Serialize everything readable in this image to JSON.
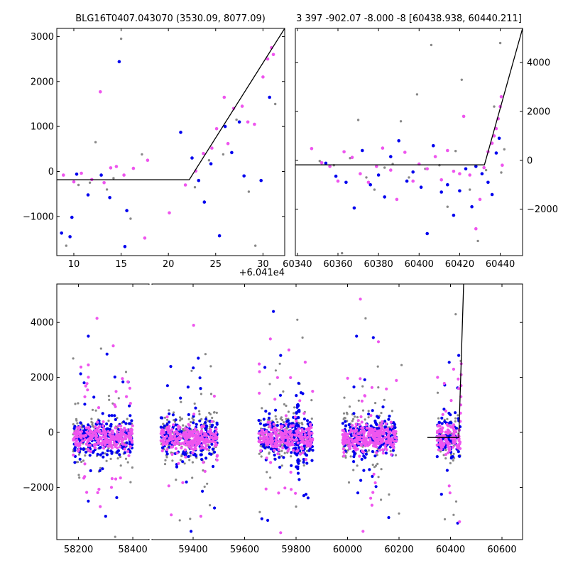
{
  "chart_data": [
    {
      "type": "scatter",
      "panel": "top-left",
      "title": "BLG16T0407.043070 (3530.09, 8077.09)",
      "xlim": [
        8.2,
        32.3
      ],
      "ylim": [
        -1870,
        3180
      ],
      "xticks": [
        10,
        15,
        20,
        25,
        30
      ],
      "yticks": [
        -1000,
        0,
        1000,
        2000,
        3000
      ],
      "ytick_side": "left",
      "x_offset_label": "+6.041e4",
      "model_line": {
        "x": [
          8.2,
          22.2,
          32.3
        ],
        "y": [
          -185,
          -185,
          3180
        ]
      },
      "series": [
        {
          "color": "#888888",
          "points": [
            [
              9.2,
              -1650
            ],
            [
              10.5,
              -300
            ],
            [
              11.7,
              -250
            ],
            [
              12.3,
              650
            ],
            [
              13.5,
              -400
            ],
            [
              14.2,
              -150
            ],
            [
              15.0,
              2950
            ],
            [
              16.0,
              -1050
            ],
            [
              17.2,
              380
            ],
            [
              22.8,
              -350
            ],
            [
              24.3,
              250
            ],
            [
              25.8,
              380
            ],
            [
              27.2,
              1150
            ],
            [
              28.5,
              -450
            ],
            [
              29.2,
              -1650
            ],
            [
              31.3,
              1500
            ]
          ]
        },
        {
          "color": "#0000ee",
          "points": [
            [
              8.7,
              -1370
            ],
            [
              9.6,
              -1450
            ],
            [
              9.8,
              -1020
            ],
            [
              10.3,
              -60
            ],
            [
              11.5,
              -520
            ],
            [
              12.9,
              -80
            ],
            [
              13.8,
              -580
            ],
            [
              14.8,
              2440
            ],
            [
              15.4,
              -1670
            ],
            [
              15.6,
              -870
            ],
            [
              21.3,
              870
            ],
            [
              22.5,
              300
            ],
            [
              23.2,
              -200
            ],
            [
              23.8,
              -680
            ],
            [
              24.5,
              170
            ],
            [
              25.4,
              -1430
            ],
            [
              26.0,
              1000
            ],
            [
              26.7,
              420
            ],
            [
              27.5,
              1100
            ],
            [
              28.0,
              -100
            ],
            [
              29.8,
              -200
            ],
            [
              30.7,
              1650
            ]
          ]
        },
        {
          "color": "#ee55ee",
          "points": [
            [
              8.9,
              -80
            ],
            [
              10.0,
              -230
            ],
            [
              10.8,
              -40
            ],
            [
              11.9,
              -180
            ],
            [
              12.8,
              1770
            ],
            [
              13.2,
              -250
            ],
            [
              13.9,
              80
            ],
            [
              14.5,
              110
            ],
            [
              15.3,
              -80
            ],
            [
              16.3,
              70
            ],
            [
              17.5,
              -1480
            ],
            [
              17.8,
              250
            ],
            [
              20.1,
              -920
            ],
            [
              21.8,
              -300
            ],
            [
              22.9,
              10
            ],
            [
              23.7,
              400
            ],
            [
              24.6,
              520
            ],
            [
              25.1,
              950
            ],
            [
              25.9,
              1650
            ],
            [
              26.3,
              620
            ],
            [
              26.9,
              1400
            ],
            [
              27.8,
              1450
            ],
            [
              28.4,
              1100
            ],
            [
              29.1,
              1050
            ],
            [
              30.0,
              2100
            ],
            [
              30.5,
              2500
            ],
            [
              30.9,
              2750
            ],
            [
              31.1,
              2600
            ]
          ]
        }
      ]
    },
    {
      "type": "scatter",
      "panel": "top-right",
      "title": "3 397 -902.07 -8.000 -8 [60438.938, 60440.211]",
      "xlim": [
        60339,
        60451
      ],
      "ylim": [
        -3900,
        5400
      ],
      "xticks": [
        60340,
        60360,
        60380,
        60400,
        60420,
        60440
      ],
      "yticks": [
        -2000,
        0,
        2000,
        4000
      ],
      "ytick_side": "right",
      "model_line": {
        "x": [
          60339,
          60432.2,
          60451
        ],
        "y": [
          -185,
          -185,
          5400
        ]
      },
      "series": [
        {
          "color": "#888888",
          "points": [
            [
              60351,
              -30
            ],
            [
              60358,
              -200
            ],
            [
              60362,
              -3800
            ],
            [
              60366,
              90
            ],
            [
              60370,
              1650
            ],
            [
              60374,
              -700
            ],
            [
              60378,
              -1200
            ],
            [
              60383,
              -300
            ],
            [
              60387,
              -150
            ],
            [
              60391,
              1600
            ],
            [
              60395,
              -700
            ],
            [
              60399,
              2700
            ],
            [
              60403,
              -350
            ],
            [
              60406,
              4720
            ],
            [
              60410,
              -200
            ],
            [
              60414,
              -1900
            ],
            [
              60418,
              380
            ],
            [
              60421,
              3300
            ],
            [
              60425,
              -1200
            ],
            [
              60429,
              -3300
            ],
            [
              60433,
              -400
            ],
            [
              60437,
              2200
            ],
            [
              60440,
              4800
            ],
            [
              60440.5,
              -500
            ],
            [
              60442,
              450
            ]
          ]
        },
        {
          "color": "#0000ee",
          "points": [
            [
              60354,
              -120
            ],
            [
              60359,
              -650
            ],
            [
              60364,
              -900
            ],
            [
              60368,
              -1950
            ],
            [
              60372,
              400
            ],
            [
              60376,
              -1000
            ],
            [
              60380,
              -600
            ],
            [
              60383,
              -1500
            ],
            [
              60386,
              150
            ],
            [
              60390,
              800
            ],
            [
              60394,
              -850
            ],
            [
              60397,
              -480
            ],
            [
              60401,
              -1100
            ],
            [
              60404,
              -3000
            ],
            [
              60407,
              600
            ],
            [
              60411,
              -1300
            ],
            [
              60414,
              -1000
            ],
            [
              60417,
              -2250
            ],
            [
              60420,
              -1250
            ],
            [
              60423,
              -350
            ],
            [
              60426,
              -1900
            ],
            [
              60428,
              -250
            ],
            [
              60431,
              -550
            ],
            [
              60434,
              -900
            ],
            [
              60436,
              -1400
            ],
            [
              60438,
              300
            ],
            [
              60439.5,
              900
            ]
          ]
        },
        {
          "color": "#ee55ee",
          "points": [
            [
              60347,
              480
            ],
            [
              60352,
              -100
            ],
            [
              60356,
              -250
            ],
            [
              60360,
              -850
            ],
            [
              60363,
              350
            ],
            [
              60367,
              120
            ],
            [
              60371,
              -550
            ],
            [
              60375,
              -900
            ],
            [
              60379,
              -250
            ],
            [
              60382,
              500
            ],
            [
              60386,
              -400
            ],
            [
              60389,
              -1600
            ],
            [
              60393,
              330
            ],
            [
              60397,
              -850
            ],
            [
              60400,
              -150
            ],
            [
              60404,
              -350
            ],
            [
              60408,
              150
            ],
            [
              60411,
              -800
            ],
            [
              60414,
              400
            ],
            [
              60417,
              -450
            ],
            [
              60420,
              -550
            ],
            [
              60422,
              1800
            ],
            [
              60425,
              -600
            ],
            [
              60428,
              -2800
            ],
            [
              60430,
              -1600
            ],
            [
              60432,
              -300
            ],
            [
              60434,
              350
            ],
            [
              60436,
              700
            ],
            [
              60437,
              1000
            ],
            [
              60438,
              1300
            ],
            [
              60439,
              1700
            ],
            [
              60440,
              2200
            ],
            [
              60440.5,
              2600
            ],
            [
              60441,
              -200
            ]
          ]
        }
      ]
    },
    {
      "type": "scatter",
      "panel": "bottom",
      "xlim": [
        58120,
        60680
      ],
      "ylim": [
        -3900,
        5400
      ],
      "xticks": [
        58200,
        58400,
        59400,
        59600,
        59800,
        60000,
        60200,
        60400,
        60600
      ],
      "yticks": [
        -2000,
        0,
        2000,
        4000
      ],
      "ytick_side": "left",
      "x_axis_break": [
        58460,
        59240
      ],
      "model_line": {
        "x": [
          60310,
          60432.2,
          60451
        ],
        "y": [
          -185,
          -185,
          5400
        ]
      },
      "seasons": [
        {
          "x_center": 58290,
          "half_width": 110,
          "features": [
            [
              58236,
              3500
            ],
            [
              58268,
              4150
            ],
            [
              58283,
              3050
            ],
            [
              58305,
              2850
            ],
            [
              58328,
              3150
            ],
            [
              58375,
              2200
            ],
            [
              58236,
              -2500
            ],
            [
              58280,
              -2700
            ],
            [
              58335,
              -3800
            ],
            [
              58300,
              -3050
            ]
          ]
        },
        {
          "x_center": 59385,
          "half_width": 110,
          "features": [
            [
              59313,
              2400
            ],
            [
              59402,
              3900
            ],
            [
              59448,
              2850
            ],
            [
              59420,
              2700
            ],
            [
              59315,
              -3000
            ],
            [
              59348,
              -3200
            ],
            [
              59392,
              -3600
            ],
            [
              59430,
              -3050
            ],
            [
              59465,
              -2650
            ],
            [
              59483,
              -2750
            ]
          ]
        },
        {
          "x_center": 59760,
          "half_width": 105,
          "features": [
            [
              59712,
              4400
            ],
            [
              59700,
              3400
            ],
            [
              59805,
              4100
            ],
            [
              59740,
              2800
            ],
            [
              59772,
              3000
            ],
            [
              59825,
              3450
            ],
            [
              59690,
              -3200
            ],
            [
              59740,
              -3650
            ],
            [
              59800,
              -2700
            ],
            [
              59830,
              -2300
            ]
          ]
        },
        {
          "x_center": 60085,
          "half_width": 105,
          "features": [
            [
              60035,
              3500
            ],
            [
              60050,
              4850
            ],
            [
              60070,
              4150
            ],
            [
              60100,
              3450
            ],
            [
              60120,
              3300
            ],
            [
              60210,
              2450
            ],
            [
              60040,
              -2200
            ],
            [
              60095,
              -2650
            ],
            [
              60130,
              -2450
            ],
            [
              60160,
              -3100
            ],
            [
              60060,
              -3600
            ],
            [
              60200,
              -2950
            ]
          ]
        },
        {
          "x_center": 60393,
          "half_width": 45,
          "features": [
            [
              60395,
              2550
            ],
            [
              60412,
              2300
            ],
            [
              60420,
              4300
            ],
            [
              60432,
              2800
            ],
            [
              60432,
              1600
            ],
            [
              60440,
              2600
            ],
            [
              60365,
              -2250
            ],
            [
              60398,
              -2200
            ],
            [
              60412,
              -3000
            ],
            [
              60428,
              -3300
            ],
            [
              60435,
              -3250
            ]
          ]
        }
      ]
    }
  ]
}
